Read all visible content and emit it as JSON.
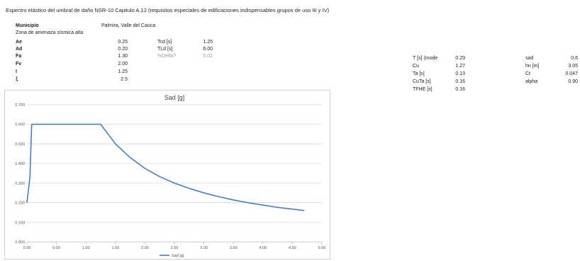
{
  "title": "Espectro elástico del umbral de daño NSR-10 Capitulo A.12 (requisitos especiales de edificaciones indispensables grupos de uso III y IV)",
  "municipio": {
    "label": "Municipio",
    "value": "Palmira, Valle del Cauca"
  },
  "zona": "Zona de amenaza sísmica alta",
  "params": [
    {
      "label": "Ae",
      "value": "0.25"
    },
    {
      "label": "Ad",
      "value": "0.20"
    },
    {
      "label": "Fa",
      "value": "1.30"
    },
    {
      "label": "Fv",
      "value": "2.00"
    },
    {
      "label": "I",
      "value": "1.25"
    },
    {
      "label": "ξ",
      "value": "2.5"
    }
  ],
  "periods": [
    {
      "label": "Tcd [s]",
      "value": "1.25"
    },
    {
      "label": "TLd [s]",
      "value": "6.00"
    },
    {
      "label": "%Delta?",
      "value": "0.02"
    }
  ],
  "right_table": [
    {
      "label": "T [s] (mode",
      "value": "0.29",
      "label2": "sad",
      "value2": "0.6"
    },
    {
      "label": "Cu",
      "value": "1.27",
      "label2": "hn [m]",
      "value2": "3.05"
    },
    {
      "label": "Ta [s]",
      "value": "0.13",
      "label2": "Ct",
      "value2": "0.047"
    },
    {
      "label": "CuTa [s]",
      "value": "0.16",
      "label2": "alpha",
      "value2": "0.90"
    },
    {
      "label": "TFHE [s]",
      "value": "0.16"
    }
  ],
  "chart_data": {
    "type": "line",
    "title": "Sad [g]",
    "xlabel": "",
    "ylabel": "",
    "xlim": [
      0,
      5
    ],
    "ylim": [
      0,
      0.7
    ],
    "x_ticks": [
      "0.00",
      "0.50",
      "1.00",
      "1.50",
      "2.00",
      "2.50",
      "3.00",
      "3.50",
      "4.00",
      "4.50",
      "5.00"
    ],
    "y_ticks": [
      "0.000",
      "0.100",
      "0.200",
      "0.300",
      "0.400",
      "0.500",
      "0.600",
      "0.700"
    ],
    "legend_position": "bottom",
    "grid": "horizontal",
    "line_color": "#4a7ebb",
    "series": [
      {
        "name": "Sad [g]",
        "x": [
          0,
          0.05,
          0.08,
          0.1,
          1.25,
          1.5,
          1.75,
          2.0,
          2.25,
          2.5,
          2.75,
          3.0,
          3.25,
          3.5,
          3.75,
          4.0,
          4.25,
          4.5,
          4.7
        ],
        "y": [
          0.2,
          0.33,
          0.6,
          0.6,
          0.6,
          0.5,
          0.43,
          0.375,
          0.333,
          0.3,
          0.273,
          0.25,
          0.231,
          0.214,
          0.2,
          0.188,
          0.176,
          0.167,
          0.16
        ]
      }
    ]
  }
}
